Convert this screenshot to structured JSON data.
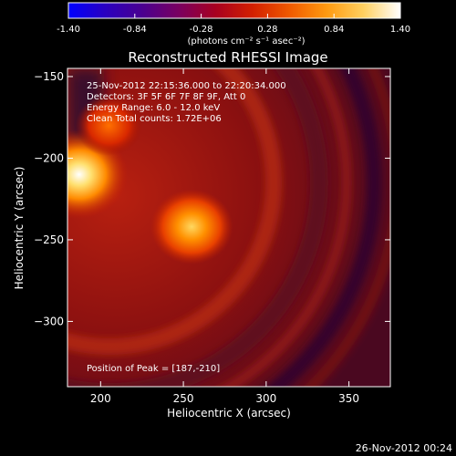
{
  "chart_data": {
    "type": "heatmap",
    "title": "Reconstructed RHESSI Image",
    "xlabel": "Heliocentric X (arcsec)",
    "ylabel": "Heliocentric Y (arcsec)",
    "xlim": [
      180,
      375
    ],
    "ylim": [
      -340,
      -145
    ],
    "x_ticks": [
      200,
      250,
      300,
      350
    ],
    "y_ticks": [
      -150,
      -200,
      -250,
      -300
    ],
    "colorbar": {
      "min": -1.4,
      "max": 1.4,
      "ticks": [
        -1.4,
        -0.84,
        -0.28,
        0.28,
        0.84,
        1.4
      ],
      "tick_labels": [
        "-1.40",
        "-0.84",
        "-0.28",
        "0.28",
        "0.84",
        "1.40"
      ],
      "label": "(photons cm⁻² s⁻¹ asec⁻²)",
      "colormap": [
        "#0000ff",
        "#2a00c0",
        "#4a0090",
        "#7a0060",
        "#a80020",
        "#d32000",
        "#f05a00",
        "#ff9a10",
        "#ffd060",
        "#ffffff"
      ]
    },
    "annotations": [
      "25-Nov-2012 22:15:36.000 to 22:20:34.000",
      "Detectors: 3F 5F 6F 7F 8F 9F, Att 0",
      "Energy Range: 6.0 - 12.0 keV",
      "Clean    Total counts: 1.72E+06"
    ],
    "peak_label": "Position of Peak = [187,-210]",
    "sources": [
      {
        "x": 187,
        "y": -210,
        "value": 1.4
      },
      {
        "x": 255,
        "y": -242,
        "value": 1.05
      },
      {
        "x": 205,
        "y": -180,
        "value": 0.7
      }
    ]
  },
  "footer": {
    "date": "26-Nov-2012 00:24"
  }
}
